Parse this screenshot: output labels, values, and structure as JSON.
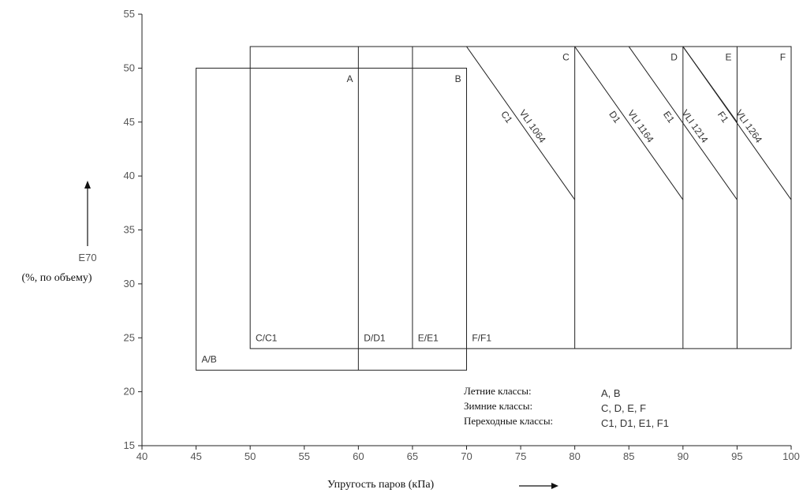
{
  "chart_data": {
    "type": "diagram",
    "xlabel": "Упругость паров (кПа)",
    "ylabel_top": "E70",
    "ylabel_bottom": "(%, по объему)",
    "xlim": [
      40,
      100
    ],
    "ylim": [
      15,
      55
    ],
    "x_ticks": [
      "40",
      "45",
      "50",
      "55",
      "60",
      "65",
      "70",
      "75",
      "80",
      "85",
      "90",
      "95",
      "100"
    ],
    "y_ticks": [
      "15",
      "20",
      "25",
      "30",
      "35",
      "40",
      "45",
      "50",
      "55"
    ],
    "rectangles": [
      {
        "x": [
          45,
          70
        ],
        "y": [
          22,
          50
        ]
      },
      {
        "x": [
          50,
          100
        ],
        "y": [
          24,
          52
        ]
      }
    ],
    "vertical_dividers": [
      {
        "x": 60,
        "y": [
          22,
          52
        ]
      },
      {
        "x": 65,
        "y": [
          24,
          52
        ]
      },
      {
        "x": 80,
        "y": [
          24,
          52
        ]
      },
      {
        "x": 90,
        "y": [
          24,
          52
        ]
      },
      {
        "x": 95,
        "y": [
          24,
          52
        ]
      }
    ],
    "vli_lines": [
      {
        "x": [
          70,
          80
        ],
        "y": [
          52,
          37.8
        ],
        "labels": [
          "VLI 1064",
          "C1"
        ]
      },
      {
        "x": [
          80,
          90
        ],
        "y": [
          52,
          37.8
        ],
        "labels": [
          "VLI 1164",
          "D1"
        ]
      },
      {
        "x": [
          90,
          95
        ],
        "y": [
          52,
          45
        ],
        "labels": []
      },
      {
        "x": [
          85,
          95
        ],
        "y": [
          52,
          37.8
        ],
        "labels": [
          "VLI 1214",
          "E1"
        ]
      },
      {
        "x": [
          90,
          100
        ],
        "y": [
          52,
          37.8
        ],
        "labels": [
          "VLI 1264",
          "F1"
        ]
      }
    ],
    "region_labels": [
      {
        "text": "A",
        "x": 59.5,
        "y": 49
      },
      {
        "text": "B",
        "x": 69.5,
        "y": 49
      },
      {
        "text": "C",
        "x": 79.5,
        "y": 51
      },
      {
        "text": "D",
        "x": 89.5,
        "y": 51
      },
      {
        "text": "E",
        "x": 94.5,
        "y": 51
      },
      {
        "text": "F",
        "x": 99.5,
        "y": 51
      },
      {
        "text": "A/B",
        "x": 45.5,
        "y": 23
      },
      {
        "text": "C/C1",
        "x": 50.5,
        "y": 25
      },
      {
        "text": "D/D1",
        "x": 60.5,
        "y": 25
      },
      {
        "text": "E/E1",
        "x": 65.5,
        "y": 25
      },
      {
        "text": "F/F1",
        "x": 70.5,
        "y": 25
      }
    ],
    "legend": [
      {
        "key": "Летние классы:",
        "value": "A, B"
      },
      {
        "key": "Зимние классы:",
        "value": "C, D, E, F"
      },
      {
        "key": "Переходные классы:",
        "value": "C1, D1, E1, F1"
      }
    ]
  }
}
